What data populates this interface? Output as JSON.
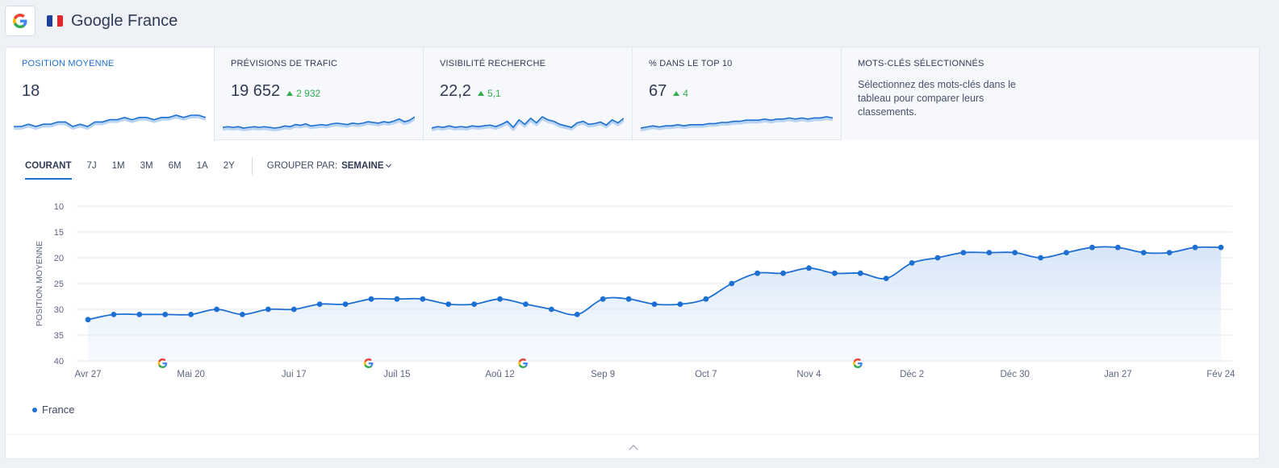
{
  "header": {
    "title": "Google France",
    "engine_icon": "google-g-icon",
    "flag_icon": "france-flag-icon",
    "flag_colors": [
      "#1f3fa0",
      "#ffffff",
      "#e4262e"
    ]
  },
  "cards": [
    {
      "title": "POSITION MOYENNE",
      "value": "18",
      "delta": "",
      "spark": [
        31,
        31,
        30.5,
        31,
        30.5,
        30.5,
        30,
        30,
        31,
        30.5,
        31,
        30,
        30,
        29.5,
        29.5,
        29,
        29.5,
        29,
        29,
        29.5,
        29,
        29,
        28.5,
        29,
        28.5,
        28.5,
        29
      ]
    },
    {
      "title": "PRÉVISIONS DE TRAFIC",
      "value": "19 652",
      "delta": "2 932",
      "spark": [
        10,
        11,
        10,
        11,
        9,
        10,
        11,
        10,
        11,
        10,
        9,
        10,
        12,
        11,
        14,
        13,
        15,
        12,
        13,
        14,
        13,
        15,
        16,
        15,
        14,
        16,
        15,
        16,
        18,
        17,
        16,
        18,
        17,
        19,
        22,
        18,
        20,
        25
      ]
    },
    {
      "title": "VISIBILITÉ RECHERCHE",
      "value": "22,2",
      "delta": "5,1",
      "spark": [
        9,
        11,
        10,
        12,
        10,
        11,
        10,
        12,
        11,
        12,
        13,
        11,
        14,
        18,
        10,
        20,
        14,
        22,
        16,
        24,
        20,
        18,
        14,
        12,
        10,
        16,
        18,
        14,
        15,
        17,
        13,
        20,
        16,
        22
      ]
    },
    {
      "title": "% DANS LE TOP 10",
      "value": "67",
      "delta": "4",
      "spark": [
        10,
        11,
        12,
        11,
        12,
        12,
        13,
        12,
        13,
        13,
        13,
        14,
        14,
        15,
        15,
        16,
        16,
        17,
        17,
        17,
        18,
        17,
        18,
        18,
        19,
        18,
        19,
        18,
        19,
        19,
        20,
        19
      ]
    }
  ],
  "keywords_card": {
    "title": "MOTS-CLÉS SÉLECTIONNÉS",
    "description": "Sélectionnez des mots-clés dans le tableau pour comparer leurs classements."
  },
  "toolbar": {
    "ranges": [
      "COURANT",
      "7J",
      "1M",
      "3M",
      "6M",
      "1A",
      "2Y"
    ],
    "active_range": "COURANT",
    "group_label": "GROUPER PAR:",
    "group_value": "SEMAINE"
  },
  "colors": {
    "accent": "#1d6fd1",
    "positive": "#2fae4d"
  },
  "chart_data": {
    "type": "line",
    "ylabel": "POSITION MOYENNE",
    "y_inverted": true,
    "ylim": [
      10,
      40
    ],
    "yticks": [
      10,
      15,
      20,
      25,
      30,
      35,
      40
    ],
    "x_tick_labels": [
      "Avr 27",
      "Mai 20",
      "Jui 17",
      "Juil 15",
      "Aoû 12",
      "Sep 9",
      "Oct 7",
      "Nov 4",
      "Déc 2",
      "Déc 30",
      "Jan 27",
      "Fév 24"
    ],
    "series": [
      {
        "name": "France",
        "values": [
          32,
          31,
          31,
          31,
          31,
          30,
          31,
          30,
          30,
          29,
          29,
          28,
          28,
          28,
          29,
          29,
          28,
          29,
          30,
          31,
          28,
          28,
          29,
          29,
          28,
          25,
          23,
          23,
          22,
          23,
          23,
          24,
          21,
          20,
          19,
          19,
          19,
          20,
          19,
          18,
          18,
          19,
          19,
          18,
          18
        ]
      }
    ],
    "update_markers": 4,
    "legend": "bottom-left"
  }
}
